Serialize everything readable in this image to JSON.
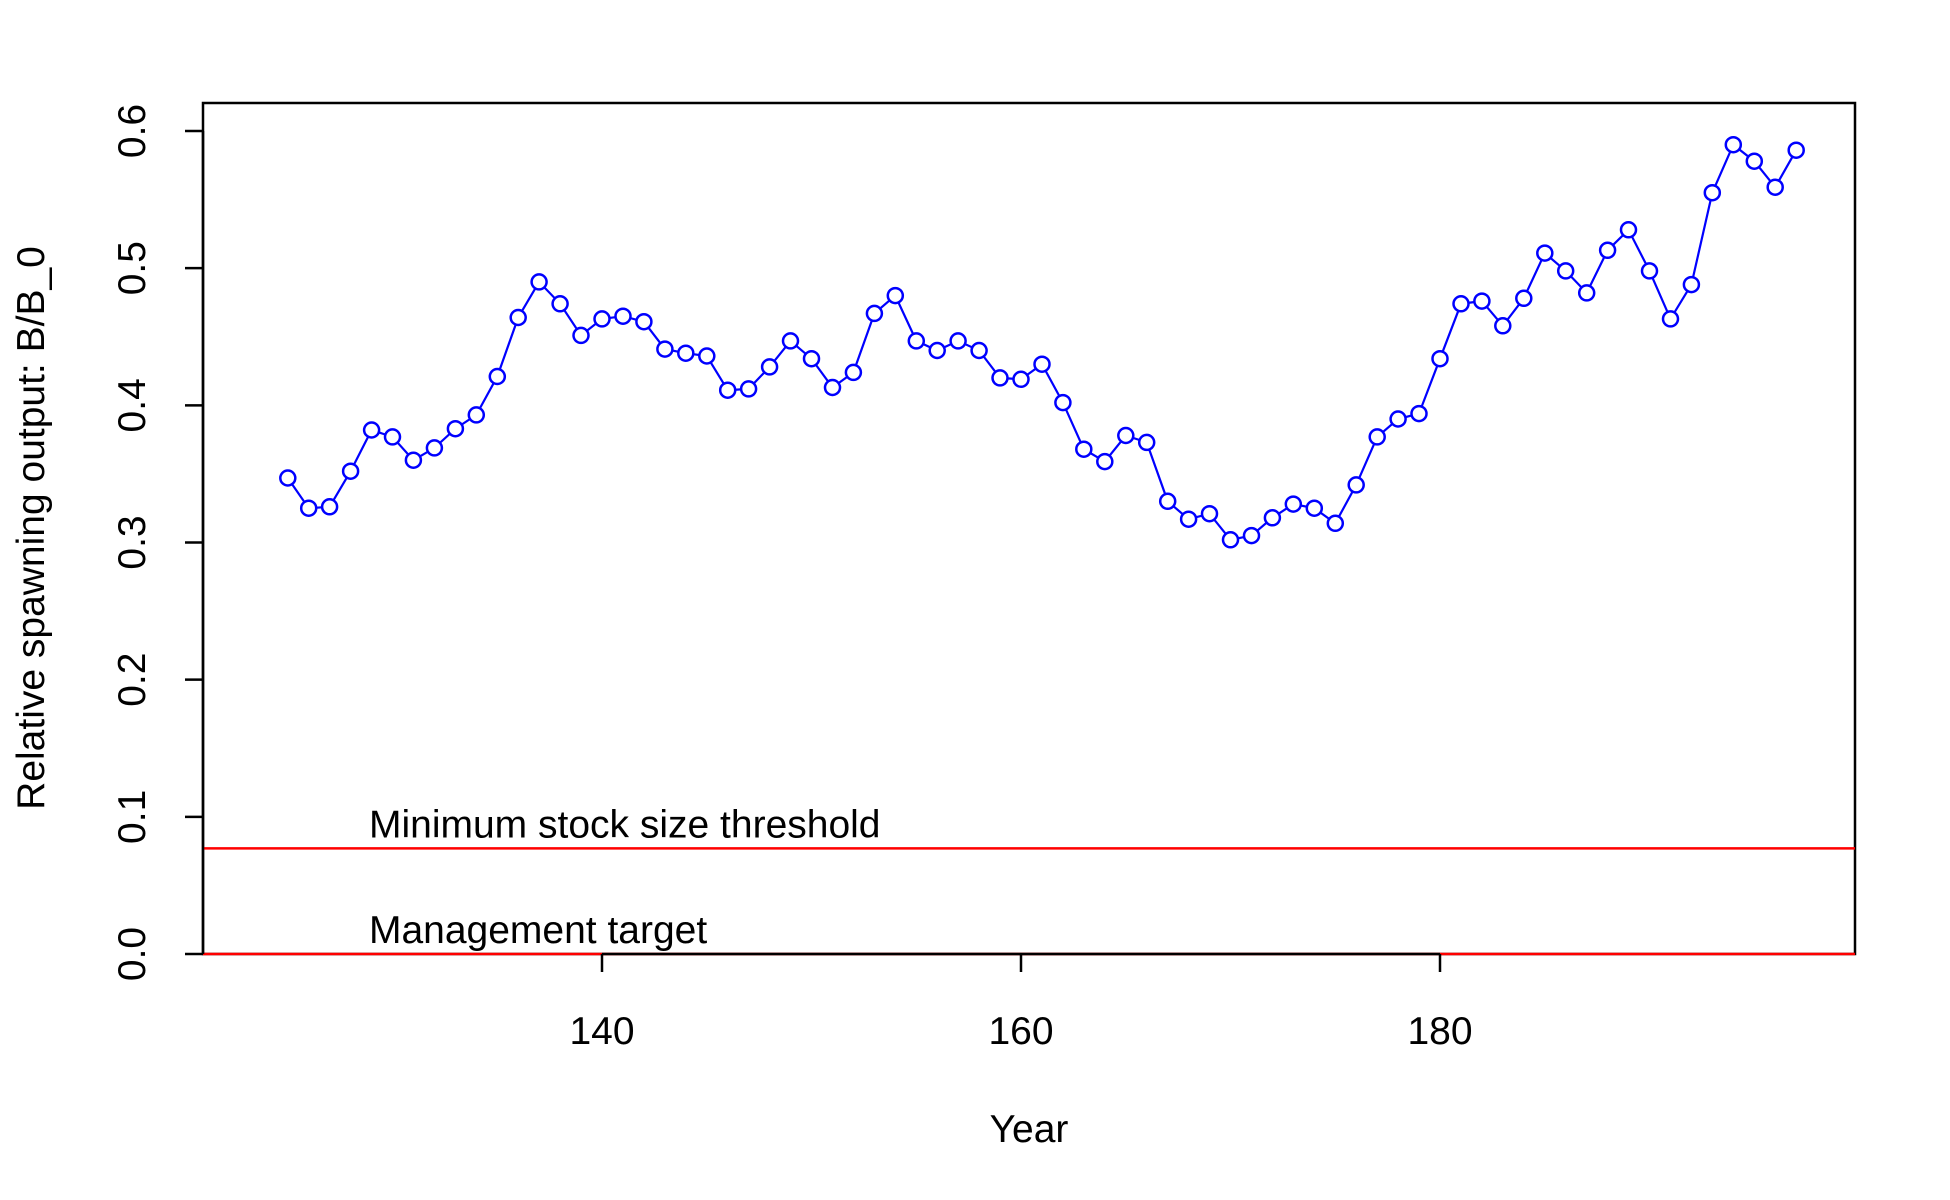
{
  "chart_data": {
    "type": "line",
    "title": "",
    "xlabel": "Year",
    "ylabel": "Relative spawning output: B/B_0",
    "xlim": [
      120.5,
      199.5
    ],
    "ylim": [
      0,
      0.62
    ],
    "x_ticks": [
      140,
      160,
      180
    ],
    "x_tick_labels": [
      "140",
      "160",
      "180"
    ],
    "y_ticks": [
      0,
      0.1,
      0.2,
      0.3,
      0.4,
      0.5,
      0.6
    ],
    "y_tick_labels": [
      "0.0",
      "0.1",
      "0.2",
      "0.3",
      "0.4",
      "0.5",
      "0.6"
    ],
    "grid": false,
    "legend": "none",
    "series": [
      {
        "color": "#0000ff",
        "marker": "open-circle",
        "x": [
          125,
          126,
          127,
          128,
          129,
          130,
          131,
          132,
          133,
          134,
          135,
          136,
          137,
          138,
          139,
          140,
          141,
          142,
          143,
          144,
          145,
          146,
          147,
          148,
          149,
          150,
          151,
          152,
          153,
          154,
          155,
          156,
          157,
          158,
          159,
          160,
          161,
          162,
          163,
          164,
          165,
          166,
          167,
          168,
          169,
          170,
          171,
          172,
          173,
          174,
          175,
          176,
          177,
          178,
          179,
          180,
          181,
          182,
          183,
          184,
          185,
          186,
          187,
          188,
          189,
          190,
          191,
          192,
          193,
          194,
          195,
          196,
          197
        ],
        "y": [
          0.347,
          0.325,
          0.326,
          0.352,
          0.382,
          0.377,
          0.36,
          0.369,
          0.383,
          0.393,
          0.421,
          0.464,
          0.49,
          0.474,
          0.451,
          0.463,
          0.465,
          0.461,
          0.441,
          0.438,
          0.436,
          0.411,
          0.412,
          0.428,
          0.447,
          0.434,
          0.413,
          0.424,
          0.467,
          0.48,
          0.447,
          0.44,
          0.447,
          0.44,
          0.42,
          0.419,
          0.43,
          0.402,
          0.368,
          0.359,
          0.378,
          0.373,
          0.33,
          0.317,
          0.321,
          0.302,
          0.305,
          0.318,
          0.328,
          0.325,
          0.314,
          0.342,
          0.377,
          0.39,
          0.394,
          0.434,
          0.474,
          0.476,
          0.458,
          0.478,
          0.511,
          0.498,
          0.482,
          0.513,
          0.528,
          0.498,
          0.463,
          0.488,
          0.555,
          0.59,
          0.578,
          0.559,
          0.586
        ]
      }
    ],
    "reference_lines": [
      {
        "y": 0.077,
        "color": "#ff0000",
        "label": "Minimum stock size threshold"
      },
      {
        "y": 0.0,
        "color": "#ff0000",
        "label": "Management target"
      }
    ]
  }
}
